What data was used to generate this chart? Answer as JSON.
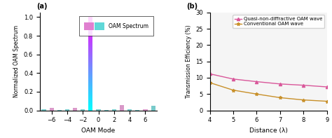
{
  "panel_a": {
    "label": "(a)",
    "modes": [
      -7,
      -6,
      -5,
      -4,
      -3,
      -2,
      -1,
      0,
      1,
      2,
      3,
      4,
      5,
      6,
      7
    ],
    "values": [
      0.01,
      0.025,
      0.008,
      0.01,
      0.025,
      0.01,
      1.0,
      0.01,
      0.008,
      0.01,
      0.055,
      0.01,
      0.008,
      0.01,
      0.05
    ],
    "xlim": [
      -7.5,
      7.5
    ],
    "ylim": [
      0,
      1.05
    ],
    "xlabel": "OAM Mode",
    "ylabel": "Normalized OAM Spectrum",
    "legend_label": "OAM Spectrum",
    "xticks": [
      -6,
      -4,
      -2,
      0,
      2,
      4,
      6
    ],
    "yticks": [
      0.0,
      0.2,
      0.4,
      0.6,
      0.8,
      1.0
    ],
    "bar_width": 0.55,
    "gradient_mode": -1,
    "color_pink": "#d898c8",
    "color_teal": "#78caca",
    "pink_modes": [
      -6,
      -3,
      3,
      6
    ],
    "teal_modes": [
      -7,
      -5,
      -4,
      -2,
      0,
      1,
      2,
      4,
      5,
      7
    ]
  },
  "panel_b": {
    "label": "(b)",
    "x": [
      4,
      5,
      6,
      7,
      8,
      9
    ],
    "y_quasi": [
      11.2,
      9.6,
      8.8,
      8.1,
      7.7,
      7.2
    ],
    "y_conv": [
      8.5,
      6.2,
      5.0,
      3.9,
      3.2,
      2.8
    ],
    "color_quasi": "#d9579a",
    "color_conv": "#c8902a",
    "xlabel": "Distance (λ)",
    "ylabel": "Transmission Efficiency (%)",
    "ylim": [
      0,
      30
    ],
    "xlim": [
      4,
      9
    ],
    "yticks": [
      0,
      5,
      10,
      15,
      20,
      25,
      30
    ],
    "xticks": [
      4,
      5,
      6,
      7,
      8,
      9
    ],
    "legend_quasi": "Quasi-non-diffractive OAM wave",
    "legend_conv": "Conventional OAM wave"
  }
}
